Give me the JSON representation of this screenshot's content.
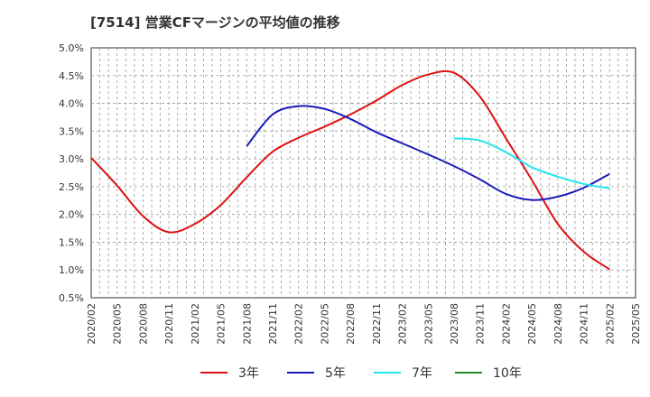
{
  "chart_data": {
    "type": "line",
    "title": "[7514]  営業CFマージンの平均値の推移",
    "xlabel": "",
    "ylabel": "",
    "x": [
      "2020/02",
      "2020/05",
      "2020/08",
      "2020/11",
      "2021/02",
      "2021/05",
      "2021/08",
      "2021/11",
      "2022/02",
      "2022/05",
      "2022/08",
      "2022/11",
      "2023/02",
      "2023/05",
      "2023/08",
      "2023/11",
      "2024/02",
      "2024/05",
      "2024/08",
      "2024/11",
      "2025/02",
      "2025/05"
    ],
    "y_ticks": [
      "0.5%",
      "1.0%",
      "1.5%",
      "2.0%",
      "2.5%",
      "3.0%",
      "3.5%",
      "4.0%",
      "4.5%",
      "5.0%"
    ],
    "ylim": [
      0.5,
      5.0
    ],
    "grid": true,
    "legend_position": "bottom",
    "series": [
      {
        "name": "3年",
        "color": "#dd1111",
        "values": [
          3.02,
          2.52,
          1.97,
          1.68,
          1.83,
          2.17,
          2.67,
          3.13,
          3.38,
          3.58,
          3.8,
          4.05,
          4.33,
          4.52,
          4.55,
          4.12,
          3.37,
          2.62,
          1.83,
          1.33,
          1.01,
          null
        ]
      },
      {
        "name": "5年",
        "color": "#1a1ab8",
        "values": [
          null,
          null,
          null,
          null,
          null,
          null,
          3.23,
          3.8,
          3.95,
          3.9,
          3.72,
          3.48,
          3.28,
          3.08,
          2.87,
          2.63,
          2.37,
          2.26,
          2.32,
          2.48,
          2.73,
          null
        ]
      },
      {
        "name": "7年",
        "color": "#22e5ee",
        "values": [
          null,
          null,
          null,
          null,
          null,
          null,
          null,
          null,
          null,
          null,
          null,
          null,
          null,
          null,
          3.37,
          3.33,
          3.12,
          2.85,
          2.68,
          2.55,
          2.47,
          null
        ]
      },
      {
        "name": "10年",
        "color": "#228b22",
        "values": [
          null,
          null,
          null,
          null,
          null,
          null,
          null,
          null,
          null,
          null,
          null,
          null,
          null,
          null,
          null,
          null,
          null,
          null,
          null,
          null,
          null,
          null
        ]
      }
    ]
  }
}
